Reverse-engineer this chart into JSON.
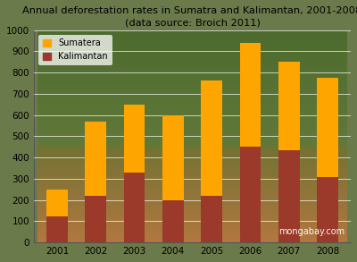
{
  "years": [
    2001,
    2002,
    2003,
    2004,
    2005,
    2006,
    2007,
    2008
  ],
  "kalimantan": [
    125,
    220,
    330,
    200,
    220,
    450,
    435,
    310
  ],
  "sumatera_total": [
    250,
    570,
    650,
    600,
    765,
    940,
    850,
    775
  ],
  "color_sumatera": "#FFA500",
  "color_kalimantan": "#9B3A2A",
  "title_line1": "Annual deforestation rates in Sumatra and Kalimantan, 2001-2008",
  "title_line2": "(data source: Broich 2011)",
  "ylim": [
    0,
    1000
  ],
  "yticks": [
    0,
    100,
    200,
    300,
    400,
    500,
    600,
    700,
    800,
    900,
    1000
  ],
  "legend_sumatera": "Sumatera",
  "legend_kalimantan": "Kalimantan",
  "watermark": "mongabay.com",
  "bar_width": 0.55,
  "fig_bg_color": "#7a8c5a",
  "top_bg_color": "#4a6a30",
  "bottom_bg_color": "#8a7a50"
}
